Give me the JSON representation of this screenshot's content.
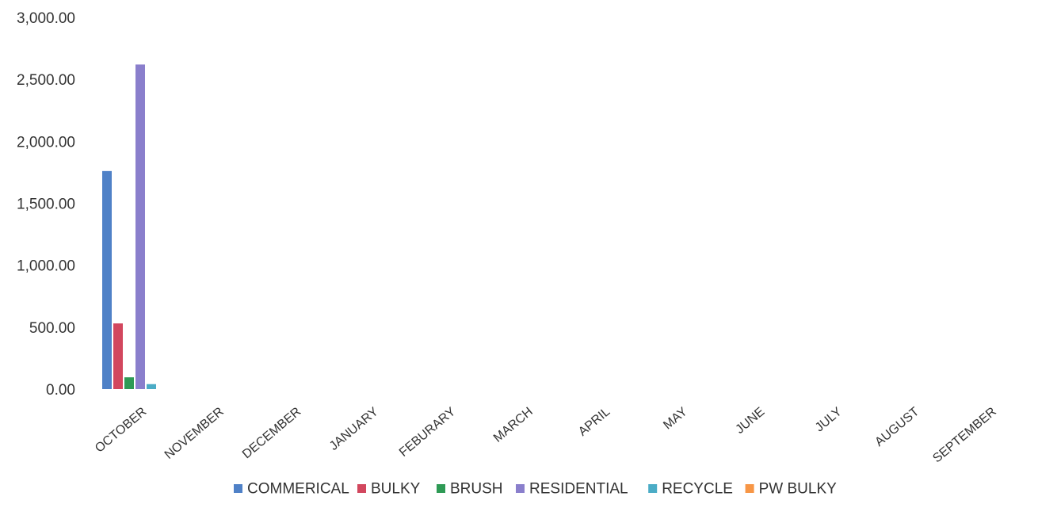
{
  "chart_data": {
    "type": "bar",
    "title": "",
    "xlabel": "",
    "ylabel": "",
    "ylim": [
      0,
      3000
    ],
    "yticks": [
      "0.00",
      "500.00",
      "1,000.00",
      "1,500.00",
      "2,000.00",
      "2,500.00",
      "3,000.00"
    ],
    "ytick_values": [
      0,
      500,
      1000,
      1500,
      2000,
      2500,
      3000
    ],
    "grid": false,
    "legend_position": "bottom",
    "categories": [
      "OCTOBER",
      "NOVEMBER",
      "DECEMBER",
      "JANUARY",
      "FEBURARY",
      "MARCH",
      "APRIL",
      "MAY",
      "JUNE",
      "JULY",
      "AUGUST",
      "SEPTEMBER"
    ],
    "series": [
      {
        "name": "COMMERICAL",
        "color": "#4f81c7",
        "values": [
          1760,
          0,
          0,
          0,
          0,
          0,
          0,
          0,
          0,
          0,
          0,
          0
        ]
      },
      {
        "name": "BULKY",
        "color": "#d2475e",
        "values": [
          530,
          0,
          0,
          0,
          0,
          0,
          0,
          0,
          0,
          0,
          0,
          0
        ]
      },
      {
        "name": "BRUSH",
        "color": "#2e9a55",
        "values": [
          95,
          0,
          0,
          0,
          0,
          0,
          0,
          0,
          0,
          0,
          0,
          0
        ]
      },
      {
        "name": "RESIDENTIAL",
        "color": "#8a7fcc",
        "values": [
          2620,
          0,
          0,
          0,
          0,
          0,
          0,
          0,
          0,
          0,
          0,
          0
        ]
      },
      {
        "name": "RECYCLE",
        "color": "#4bacc6",
        "values": [
          40,
          0,
          0,
          0,
          0,
          0,
          0,
          0,
          0,
          0,
          0,
          0
        ]
      },
      {
        "name": "PW BULKY",
        "color": "#f79646",
        "values": [
          0,
          0,
          0,
          0,
          0,
          0,
          0,
          0,
          0,
          0,
          0,
          0
        ]
      }
    ]
  }
}
